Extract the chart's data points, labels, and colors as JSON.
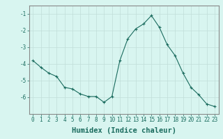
{
  "x": [
    0,
    1,
    2,
    3,
    4,
    5,
    6,
    7,
    8,
    9,
    10,
    11,
    12,
    13,
    14,
    15,
    16,
    17,
    18,
    19,
    20,
    21,
    22,
    23
  ],
  "y": [
    -3.8,
    -4.2,
    -4.55,
    -4.75,
    -5.4,
    -5.5,
    -5.8,
    -5.95,
    -5.95,
    -6.3,
    -5.95,
    -3.8,
    -2.5,
    -1.9,
    -1.6,
    -1.1,
    -1.8,
    -2.85,
    -3.5,
    -4.55,
    -5.4,
    -5.85,
    -6.4,
    -6.55
  ],
  "xlim": [
    -0.5,
    23.5
  ],
  "ylim": [
    -7.0,
    -0.5
  ],
  "yticks": [
    -1,
    -2,
    -3,
    -4,
    -5,
    -6
  ],
  "xticks": [
    0,
    1,
    2,
    3,
    4,
    5,
    6,
    7,
    8,
    9,
    10,
    11,
    12,
    13,
    14,
    15,
    16,
    17,
    18,
    19,
    20,
    21,
    22,
    23
  ],
  "xlabel": "Humidex (Indice chaleur)",
  "line_color": "#1a6b5e",
  "marker_color": "#1a6b5e",
  "bg_color": "#d8f5f0",
  "grid_color": "#c0ddd8",
  "tick_label_fontsize": 5.5,
  "xlabel_fontsize": 7.5,
  "spine_color": "#888888"
}
